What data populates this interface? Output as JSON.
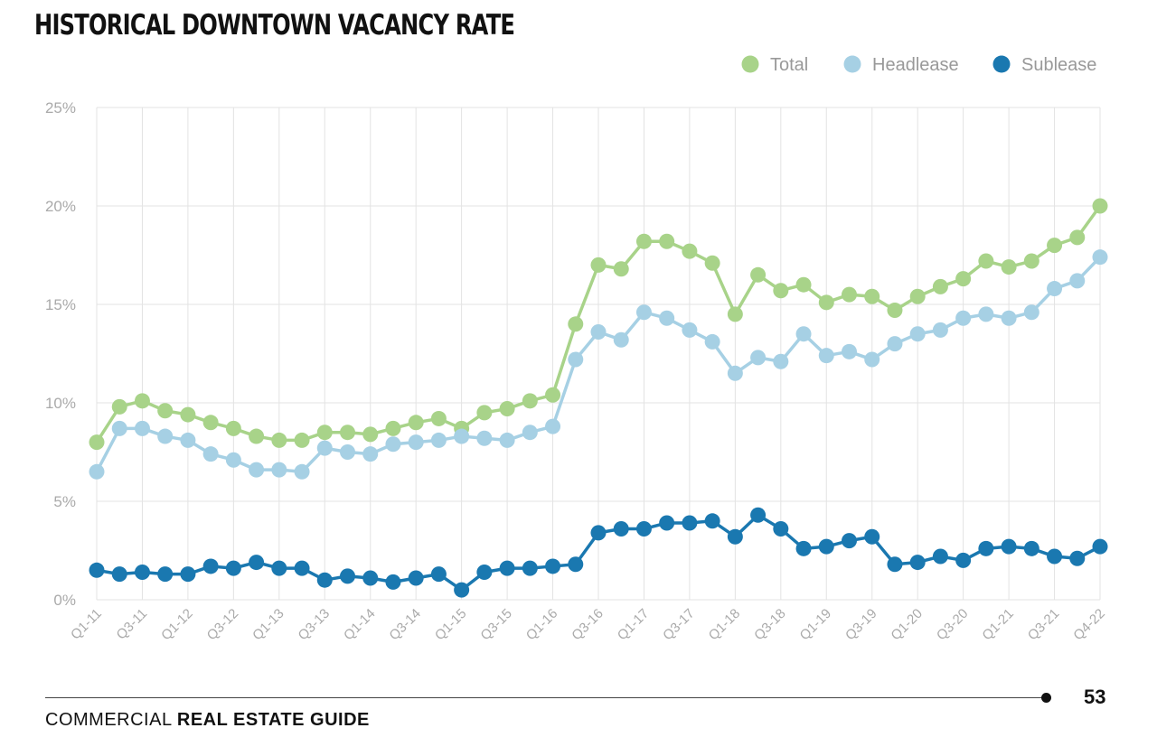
{
  "header": {
    "title": "HISTORICAL DOWNTOWN VACANCY RATE"
  },
  "footer": {
    "brand_light": "COMMERCIAL",
    "brand_bold": "REAL ESTATE GUIDE",
    "page_number": "53"
  },
  "colors": {
    "total": "#a8d389",
    "headlease": "#a6d0e4",
    "sublease": "#1a78b0",
    "grid": "#e3e3e3",
    "tick": "#aaaaaa"
  },
  "chart_data": {
    "type": "line",
    "title": "HISTORICAL DOWNTOWN VACANCY RATE",
    "ylim": [
      0,
      25
    ],
    "yticks": [
      "0%",
      "5%",
      "10%",
      "15%",
      "20%",
      "25%"
    ],
    "grid": true,
    "legend_position": "top-right",
    "x": [
      "Q1-11",
      "Q2-11",
      "Q3-11",
      "Q4-11",
      "Q1-12",
      "Q2-12",
      "Q3-12",
      "Q4-12",
      "Q1-13",
      "Q2-13",
      "Q3-13",
      "Q4-13",
      "Q1-14",
      "Q2-14",
      "Q3-14",
      "Q4-14",
      "Q1-15",
      "Q2-15",
      "Q3-15",
      "Q4-15",
      "Q1-16",
      "Q2-16",
      "Q3-16",
      "Q4-16",
      "Q1-17",
      "Q2-17",
      "Q3-17",
      "Q4-17",
      "Q1-18",
      "Q2-18",
      "Q3-18",
      "Q4-18",
      "Q1-19",
      "Q2-19",
      "Q3-19",
      "Q4-19",
      "Q1-20",
      "Q2-20",
      "Q3-20",
      "Q4-20",
      "Q1-21",
      "Q2-21",
      "Q3-21",
      "Q4-21",
      "Q4-22"
    ],
    "xtick_labels": [
      "Q1-11",
      "Q3-11",
      "Q1-12",
      "Q3-12",
      "Q1-13",
      "Q3-13",
      "Q1-14",
      "Q3-14",
      "Q1-15",
      "Q3-15",
      "Q1-16",
      "Q3-16",
      "Q1-17",
      "Q3-17",
      "Q1-18",
      "Q3-18",
      "Q1-19",
      "Q3-19",
      "Q1-20",
      "Q3-20",
      "Q1-21",
      "Q3-21",
      "Q4-22"
    ],
    "series": [
      {
        "name": "Total",
        "values": [
          8.0,
          9.8,
          10.1,
          9.6,
          9.4,
          9.0,
          8.7,
          8.3,
          8.1,
          8.1,
          8.5,
          8.5,
          8.4,
          8.7,
          9.0,
          9.2,
          8.7,
          9.5,
          9.7,
          10.1,
          10.4,
          14.0,
          17.0,
          16.8,
          18.2,
          18.2,
          17.7,
          17.1,
          14.5,
          16.5,
          15.7,
          16.0,
          15.1,
          15.5,
          15.4,
          14.7,
          15.4,
          15.9,
          16.3,
          17.2,
          16.9,
          17.2,
          18.0,
          18.4,
          20.0
        ]
      },
      {
        "name": "Headlease",
        "values": [
          6.5,
          8.7,
          8.7,
          8.3,
          8.1,
          7.4,
          7.1,
          6.6,
          6.6,
          6.5,
          7.7,
          7.5,
          7.4,
          7.9,
          8.0,
          8.1,
          8.3,
          8.2,
          8.1,
          8.5,
          8.8,
          12.2,
          13.6,
          13.2,
          14.6,
          14.3,
          13.7,
          13.1,
          11.5,
          12.3,
          12.1,
          13.5,
          12.4,
          12.6,
          12.2,
          13.0,
          13.5,
          13.7,
          14.3,
          14.5,
          14.3,
          14.6,
          15.8,
          16.2,
          17.4
        ]
      },
      {
        "name": "Sublease",
        "values": [
          1.5,
          1.3,
          1.4,
          1.3,
          1.3,
          1.7,
          1.6,
          1.9,
          1.6,
          1.6,
          1.0,
          1.2,
          1.1,
          0.9,
          1.1,
          1.3,
          0.5,
          1.4,
          1.6,
          1.6,
          1.7,
          1.8,
          3.4,
          3.6,
          3.6,
          3.9,
          3.9,
          4.0,
          3.2,
          4.3,
          3.6,
          2.6,
          2.7,
          3.0,
          3.2,
          1.8,
          1.9,
          2.2,
          2.0,
          2.6,
          2.7,
          2.6,
          2.2,
          2.1,
          2.7
        ]
      }
    ]
  }
}
